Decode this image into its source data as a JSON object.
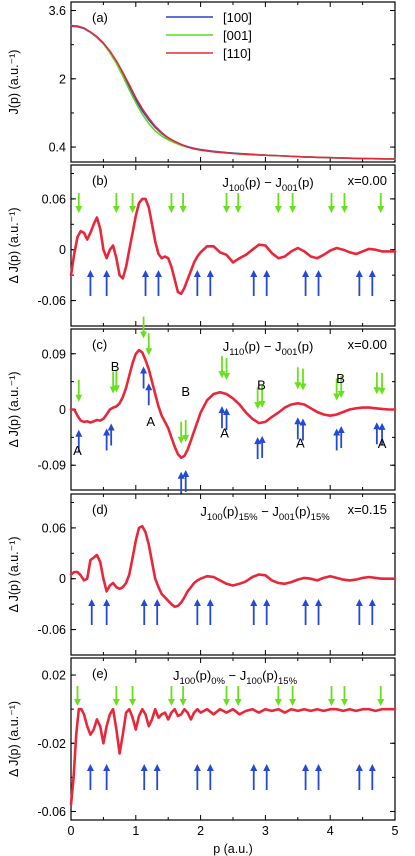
{
  "chart_data": [
    {
      "panel": "(a)",
      "type": "line",
      "ylabel": "J(p) (a.u.⁻¹)",
      "xlim": [
        0,
        5
      ],
      "ylim": [
        0.05,
        3.8
      ],
      "yticks": [
        0.4,
        2,
        3.6
      ],
      "yticklabels": [
        "0.4",
        "2",
        "3.6"
      ],
      "legend_position": "top-center",
      "series": [
        {
          "name": "[100]",
          "color": "#2b3fd6",
          "x": [
            0,
            0.1,
            0.2,
            0.3,
            0.4,
            0.5,
            0.6,
            0.7,
            0.8,
            0.9,
            1.0,
            1.1,
            1.2,
            1.3,
            1.4,
            1.5,
            1.6,
            1.7,
            1.8,
            1.9,
            2.0,
            2.2,
            2.4,
            2.6,
            2.8,
            3.0,
            3.3,
            3.6,
            4.0,
            4.5,
            5.0
          ],
          "y": [
            3.23,
            3.22,
            3.18,
            3.09,
            2.97,
            2.82,
            2.62,
            2.38,
            2.1,
            1.8,
            1.5,
            1.25,
            1.04,
            0.86,
            0.72,
            0.61,
            0.53,
            0.46,
            0.41,
            0.37,
            0.34,
            0.3,
            0.27,
            0.25,
            0.23,
            0.21,
            0.19,
            0.17,
            0.15,
            0.13,
            0.12
          ]
        },
        {
          "name": "[001]",
          "color": "#55dd22",
          "x": [
            0,
            0.1,
            0.2,
            0.3,
            0.4,
            0.5,
            0.6,
            0.7,
            0.8,
            0.9,
            1.0,
            1.1,
            1.2,
            1.3,
            1.4,
            1.5,
            1.6,
            1.7,
            1.8,
            1.9,
            2.0,
            2.2,
            2.4,
            2.6,
            2.8,
            3.0,
            3.3,
            3.6,
            4.0,
            4.5,
            5.0
          ],
          "y": [
            3.25,
            3.24,
            3.19,
            3.1,
            2.98,
            2.82,
            2.61,
            2.36,
            2.06,
            1.74,
            1.44,
            1.17,
            0.95,
            0.78,
            0.66,
            0.57,
            0.5,
            0.44,
            0.4,
            0.36,
            0.33,
            0.29,
            0.26,
            0.24,
            0.22,
            0.21,
            0.19,
            0.17,
            0.15,
            0.13,
            0.12
          ]
        },
        {
          "name": "[110]",
          "color": "#e8283a",
          "x": [
            0,
            0.1,
            0.2,
            0.3,
            0.4,
            0.5,
            0.6,
            0.7,
            0.8,
            0.9,
            1.0,
            1.1,
            1.2,
            1.3,
            1.4,
            1.5,
            1.6,
            1.7,
            1.8,
            1.9,
            2.0,
            2.2,
            2.4,
            2.6,
            2.8,
            3.0,
            3.3,
            3.6,
            4.0,
            4.5,
            5.0
          ],
          "y": [
            3.25,
            3.23,
            3.19,
            3.1,
            2.99,
            2.84,
            2.65,
            2.42,
            2.15,
            1.86,
            1.56,
            1.3,
            1.08,
            0.89,
            0.74,
            0.62,
            0.53,
            0.46,
            0.4,
            0.36,
            0.33,
            0.29,
            0.26,
            0.24,
            0.22,
            0.21,
            0.19,
            0.17,
            0.15,
            0.13,
            0.12
          ]
        }
      ]
    },
    {
      "panel": "(b)",
      "type": "line",
      "ylabel": "Δ J(p) (a.u.⁻¹)",
      "title_main": "J",
      "title_sub1": "100",
      "title_mid": "(p) − J",
      "title_sub2": "001",
      "title_end": "(p)",
      "annotation": "x=0.00",
      "xlim": [
        0,
        5
      ],
      "ylim": [
        -0.09,
        0.1
      ],
      "yticks": [
        -0.06,
        0,
        0.06
      ],
      "yticklabels": [
        "-0.06",
        "0",
        "0.06"
      ],
      "series": [
        {
          "name": "",
          "color": "#e8283a",
          "x": [
            0,
            0.05,
            0.1,
            0.15,
            0.2,
            0.25,
            0.3,
            0.35,
            0.4,
            0.45,
            0.5,
            0.55,
            0.6,
            0.65,
            0.7,
            0.75,
            0.8,
            0.85,
            0.9,
            0.95,
            1.0,
            1.05,
            1.1,
            1.15,
            1.2,
            1.25,
            1.3,
            1.35,
            1.4,
            1.45,
            1.5,
            1.55,
            1.6,
            1.65,
            1.7,
            1.75,
            1.8,
            1.85,
            1.9,
            1.95,
            2.0,
            2.1,
            2.2,
            2.3,
            2.4,
            2.5,
            2.6,
            2.7,
            2.8,
            2.9,
            3.0,
            3.1,
            3.2,
            3.3,
            3.4,
            3.5,
            3.6,
            3.7,
            3.8,
            3.9,
            4.0,
            4.1,
            4.2,
            4.3,
            4.4,
            4.5,
            4.6,
            4.7,
            4.8,
            4.9,
            5.0
          ],
          "y": [
            -0.03,
            -0.005,
            0.015,
            0.022,
            0.02,
            0.012,
            0.02,
            0.03,
            0.038,
            0.025,
            0.0,
            -0.01,
            0.0,
            0.005,
            -0.01,
            -0.03,
            -0.034,
            -0.02,
            0.0,
            0.02,
            0.04,
            0.055,
            0.06,
            0.06,
            0.05,
            0.03,
            0.01,
            -0.005,
            -0.01,
            -0.008,
            -0.01,
            -0.02,
            -0.035,
            -0.05,
            -0.052,
            -0.045,
            -0.035,
            -0.025,
            -0.015,
            -0.008,
            -0.003,
            0.004,
            0.004,
            -0.003,
            -0.006,
            -0.015,
            -0.01,
            -0.006,
            0.0,
            0.006,
            0.005,
            -0.004,
            -0.01,
            -0.008,
            -0.002,
            0.002,
            -0.002,
            -0.008,
            -0.01,
            -0.006,
            -0.001,
            0.002,
            0.0,
            -0.003,
            -0.005,
            -0.002,
            0.001,
            0.0,
            -0.002,
            -0.002,
            -0.002
          ]
        }
      ],
      "green_arrows_x": [
        0.12,
        0.7,
        0.95,
        1.55,
        1.73,
        2.4,
        2.58,
        3.2,
        3.42,
        4.02,
        4.22,
        4.78
      ],
      "blue_arrows_x": [
        0.3,
        0.55,
        1.15,
        1.35,
        1.95,
        2.15,
        2.82,
        3.02,
        3.62,
        3.82,
        4.45,
        4.65
      ]
    },
    {
      "panel": "(c)",
      "type": "line",
      "ylabel": "Δ J(p) (a.u.⁻¹)",
      "title_main": "J",
      "title_sub1": "110",
      "title_mid": "(p) − J",
      "title_sub2": "001",
      "title_end": "(p)",
      "annotation": "x=0.00",
      "xlim": [
        0,
        5
      ],
      "ylim": [
        -0.13,
        0.13
      ],
      "yticks": [
        -0.09,
        0,
        0.09
      ],
      "yticklabels": [
        "-0.09",
        "0",
        "0.09"
      ],
      "series": [
        {
          "name": "",
          "color": "#e8283a",
          "x": [
            0,
            0.05,
            0.1,
            0.15,
            0.2,
            0.25,
            0.3,
            0.35,
            0.4,
            0.45,
            0.5,
            0.55,
            0.6,
            0.65,
            0.7,
            0.75,
            0.8,
            0.85,
            0.9,
            0.95,
            1.0,
            1.05,
            1.1,
            1.15,
            1.2,
            1.25,
            1.3,
            1.35,
            1.4,
            1.45,
            1.5,
            1.55,
            1.6,
            1.65,
            1.7,
            1.75,
            1.8,
            1.85,
            1.9,
            1.95,
            2.0,
            2.1,
            2.2,
            2.3,
            2.4,
            2.5,
            2.6,
            2.7,
            2.8,
            2.9,
            3.0,
            3.1,
            3.2,
            3.3,
            3.4,
            3.5,
            3.6,
            3.7,
            3.8,
            3.9,
            4.0,
            4.1,
            4.2,
            4.3,
            4.4,
            4.5,
            4.6,
            4.7,
            4.8,
            4.9,
            5.0
          ],
          "y": [
            0.0,
            0.0,
            -0.01,
            -0.018,
            -0.02,
            -0.019,
            -0.021,
            -0.019,
            -0.017,
            -0.018,
            -0.015,
            -0.008,
            0.0,
            0.003,
            0.005,
            0.01,
            0.02,
            0.035,
            0.055,
            0.075,
            0.09,
            0.096,
            0.092,
            0.08,
            0.065,
            0.045,
            0.025,
            0.005,
            -0.01,
            -0.02,
            -0.03,
            -0.045,
            -0.06,
            -0.072,
            -0.078,
            -0.075,
            -0.065,
            -0.05,
            -0.035,
            -0.02,
            -0.005,
            0.015,
            0.025,
            0.028,
            0.025,
            0.018,
            0.008,
            -0.005,
            -0.015,
            -0.022,
            -0.02,
            -0.012,
            -0.005,
            0.003,
            0.008,
            0.01,
            0.008,
            0.002,
            -0.004,
            -0.008,
            -0.01,
            -0.008,
            -0.004,
            0.0,
            0.002,
            0.003,
            0.003,
            0.002,
            0.001,
            0.0,
            0.0
          ]
        }
      ],
      "green_arrows_x": [
        0.12,
        0.65,
        0.7,
        1.12,
        1.2,
        1.7,
        1.77,
        2.33,
        2.4,
        2.88,
        2.95,
        3.5,
        3.58,
        4.1,
        4.17,
        4.72,
        4.8
      ],
      "blue_arrows_x": [
        0.12,
        0.55,
        0.62,
        1.12,
        1.2,
        1.7,
        1.77,
        2.33,
        2.4,
        2.88,
        2.95,
        3.5,
        3.58,
        4.1,
        4.17,
        4.72,
        4.8
      ],
      "labels": [
        {
          "text": "A",
          "x": 0.1,
          "y": -0.067
        },
        {
          "text": "B",
          "x": 0.68,
          "y": 0.069
        },
        {
          "text": "A",
          "x": 1.23,
          "y": -0.02
        },
        {
          "text": "B",
          "x": 1.77,
          "y": 0.028
        },
        {
          "text": "A",
          "x": 2.37,
          "y": -0.039
        },
        {
          "text": "B",
          "x": 2.94,
          "y": 0.039
        },
        {
          "text": "A",
          "x": 3.54,
          "y": -0.055
        },
        {
          "text": "B",
          "x": 4.16,
          "y": 0.049
        },
        {
          "text": "A",
          "x": 4.8,
          "y": -0.056
        }
      ]
    },
    {
      "panel": "(d)",
      "type": "line",
      "ylabel": "Δ J(p) (a.u.⁻¹)",
      "title_main": "J",
      "title_sub1": "100",
      "title_mid": "(p)",
      "title_sub1b": "15%",
      "title_mid2": " − J",
      "title_sub2": "001",
      "title_end": "(p)",
      "title_sub2b": "15%",
      "annotation": "x=0.15",
      "xlim": [
        0,
        5
      ],
      "ylim": [
        -0.09,
        0.1
      ],
      "yticks": [
        -0.06,
        0,
        0.06
      ],
      "yticklabels": [
        "-0.06",
        "0",
        "0.06"
      ],
      "series": [
        {
          "name": "",
          "color": "#e8283a",
          "x": [
            0,
            0.05,
            0.1,
            0.15,
            0.2,
            0.25,
            0.3,
            0.35,
            0.4,
            0.45,
            0.5,
            0.55,
            0.6,
            0.65,
            0.7,
            0.75,
            0.8,
            0.85,
            0.9,
            0.95,
            1.0,
            1.05,
            1.1,
            1.15,
            1.2,
            1.25,
            1.3,
            1.35,
            1.4,
            1.45,
            1.5,
            1.55,
            1.6,
            1.65,
            1.7,
            1.75,
            1.8,
            1.85,
            1.9,
            1.95,
            2.0,
            2.1,
            2.2,
            2.3,
            2.4,
            2.5,
            2.6,
            2.7,
            2.8,
            2.9,
            3.0,
            3.1,
            3.2,
            3.3,
            3.4,
            3.5,
            3.6,
            3.7,
            3.8,
            3.9,
            4.0,
            4.1,
            4.2,
            4.3,
            4.4,
            4.5,
            4.6,
            4.7,
            4.8,
            4.9,
            5.0
          ],
          "y": [
            0.005,
            0.008,
            0.008,
            0.004,
            -0.002,
            0.0,
            0.022,
            0.025,
            0.028,
            0.02,
            0.0,
            -0.015,
            -0.008,
            -0.005,
            -0.01,
            -0.012,
            -0.01,
            -0.005,
            0.005,
            0.025,
            0.045,
            0.06,
            0.062,
            0.055,
            0.04,
            0.02,
            0.0,
            -0.01,
            -0.018,
            -0.022,
            -0.026,
            -0.03,
            -0.033,
            -0.032,
            -0.028,
            -0.022,
            -0.015,
            -0.01,
            -0.005,
            -0.002,
            0.0,
            0.003,
            0.002,
            -0.002,
            -0.006,
            -0.008,
            -0.006,
            -0.003,
            0.002,
            0.005,
            0.004,
            -0.002,
            -0.005,
            -0.006,
            -0.004,
            -0.001,
            0.001,
            0.0,
            -0.002,
            0.001,
            0.003,
            0.001,
            -0.001,
            -0.002,
            -0.001,
            0.001,
            0.002,
            0.001,
            0.0,
            0.0,
            0.0
          ]
        }
      ],
      "blue_arrows_x": [
        0.32,
        0.55,
        1.13,
        1.33,
        1.95,
        2.15,
        2.82,
        3.02,
        3.62,
        3.82,
        4.45,
        4.65
      ]
    },
    {
      "panel": "(e)",
      "type": "line",
      "ylabel": "Δ J(p) (a.u.⁻¹)",
      "title_main": "J",
      "title_sub1": "100",
      "title_mid": "(p)",
      "title_sub1b": "0%",
      "title_mid2": " − J",
      "title_sub2": "100",
      "title_end": "(p)",
      "title_sub2b": "15%",
      "annotation": "",
      "xlabel": "p (a.u.)",
      "xticks": [
        0,
        1,
        2,
        3,
        4,
        5
      ],
      "xticklabels": [
        "0",
        "1",
        "2",
        "3",
        "4",
        "5"
      ],
      "xlim": [
        0,
        5
      ],
      "ylim": [
        -0.065,
        0.03
      ],
      "yticks": [
        -0.06,
        -0.02,
        0.02
      ],
      "yticklabels": [
        "-0.06",
        "-0.02",
        "0.02"
      ],
      "series": [
        {
          "name": "",
          "color": "#e8283a",
          "x": [
            0,
            0.04,
            0.08,
            0.12,
            0.16,
            0.2,
            0.25,
            0.3,
            0.35,
            0.4,
            0.45,
            0.5,
            0.55,
            0.6,
            0.65,
            0.7,
            0.75,
            0.8,
            0.85,
            0.9,
            0.95,
            1.0,
            1.05,
            1.1,
            1.15,
            1.2,
            1.25,
            1.3,
            1.35,
            1.4,
            1.45,
            1.5,
            1.55,
            1.6,
            1.65,
            1.7,
            1.75,
            1.8,
            1.85,
            1.9,
            1.95,
            2.0,
            2.1,
            2.2,
            2.3,
            2.4,
            2.5,
            2.6,
            2.7,
            2.8,
            2.9,
            3.0,
            3.1,
            3.2,
            3.3,
            3.4,
            3.5,
            3.6,
            3.7,
            3.8,
            3.9,
            4.0,
            4.1,
            4.2,
            4.3,
            4.4,
            4.5,
            4.6,
            4.7,
            4.8,
            4.9,
            5.0
          ],
          "y": [
            -0.056,
            -0.04,
            -0.015,
            0.0,
            0.0,
            -0.003,
            -0.01,
            -0.015,
            -0.012,
            -0.006,
            -0.01,
            -0.02,
            -0.01,
            -0.003,
            0.0,
            -0.012,
            -0.026,
            -0.015,
            -0.002,
            0.0,
            -0.005,
            -0.012,
            -0.004,
            0.0,
            -0.003,
            -0.01,
            -0.006,
            0.0,
            -0.005,
            -0.003,
            -0.002,
            -0.006,
            -0.002,
            0.0,
            -0.004,
            -0.003,
            0.0,
            -0.002,
            -0.006,
            -0.002,
            0.0,
            -0.002,
            0.0,
            -0.003,
            0.0,
            -0.002,
            0.0,
            -0.003,
            -0.001,
            0.0,
            -0.002,
            0.0,
            -0.001,
            0.0,
            -0.002,
            0.0,
            -0.001,
            0.0,
            -0.001,
            0.0,
            -0.001,
            0.0,
            0.0,
            -0.001,
            0.0,
            -0.001,
            0.0,
            0.0,
            -0.001,
            0.0,
            0.0,
            0.0
          ]
        }
      ],
      "green_arrows_x": [
        0.1,
        0.7,
        0.95,
        1.55,
        1.73,
        2.4,
        2.58,
        3.2,
        3.42,
        4.02,
        4.22,
        4.78
      ],
      "blue_arrows_x": [
        0.3,
        0.55,
        1.13,
        1.33,
        1.95,
        2.15,
        2.82,
        3.02,
        3.62,
        3.82,
        4.45,
        4.65
      ]
    }
  ],
  "arrow_colors": {
    "green": "#66e11b",
    "blue": "#2349d6"
  }
}
